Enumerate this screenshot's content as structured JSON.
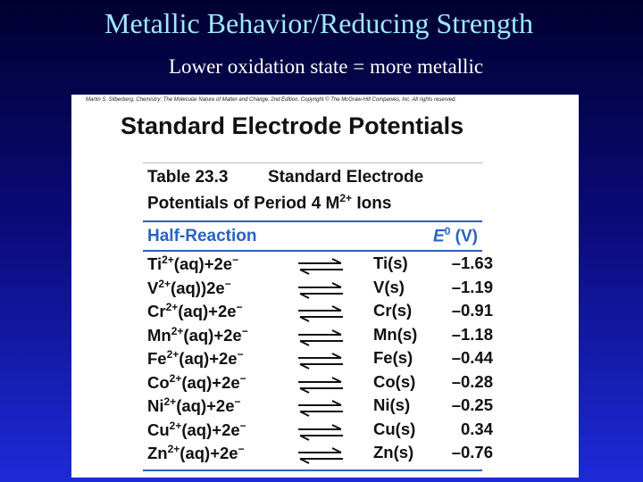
{
  "slide": {
    "title": "Metallic Behavior/Reducing Strength",
    "subtitle": "Lower oxidation state = more metallic"
  },
  "figure": {
    "credit": "Martin S. Silberberg, Chemistry: The Molecular Nature of Matter and Change, 2nd Edition. Copyright © The McGraw-Hill Companies, Inc. All rights reserved.",
    "heading": "Standard Electrode Potentials",
    "caption": {
      "label": "Table 23.3",
      "line1": "Standard Electrode",
      "line2": "Potentials of Period 4 M",
      "line2_sup": "2+",
      "line2_end": " Ions"
    },
    "header": {
      "reaction": "Half-Reaction",
      "e": "E",
      "e_sup": "0",
      "unit": "(V)"
    },
    "rows": [
      {
        "ion": "Ti",
        "charge": "2+",
        "rest": "(aq)+2e",
        "e_sup": "−",
        "metal": "Ti",
        "state": "(s)",
        "value": "–1.63"
      },
      {
        "ion": "V",
        "charge": "2+",
        "rest": "(aq))2e",
        "e_sup": "−",
        "metal": "V",
        "state": "(s)",
        "value": "–1.19"
      },
      {
        "ion": "Cr",
        "charge": "2+",
        "rest": "(aq)+2e",
        "e_sup": "−",
        "metal": "Cr",
        "state": "(s)",
        "value": "–0.91"
      },
      {
        "ion": "Mn",
        "charge": "2+",
        "rest": "(aq)+2e",
        "e_sup": "−",
        "metal": "Mn",
        "state": "(s)",
        "value": "–1.18"
      },
      {
        "ion": "Fe",
        "charge": "2+",
        "rest": "(aq)+2e",
        "e_sup": "−",
        "metal": "Fe",
        "state": "(s)",
        "value": "–0.44"
      },
      {
        "ion": "Co",
        "charge": "2+",
        "rest": "(aq)+2e",
        "e_sup": "−",
        "metal": "Co",
        "state": "(s)",
        "value": "–0.28"
      },
      {
        "ion": "Ni",
        "charge": "2+",
        "rest": "(aq)+2e",
        "e_sup": "−",
        "metal": "Ni",
        "state": "(s)",
        "value": "–0.25"
      },
      {
        "ion": "Cu",
        "charge": "2+",
        "rest": "(aq)+2e",
        "e_sup": "−",
        "metal": "Cu",
        "state": "(s)",
        "value": "0.34"
      },
      {
        "ion": "Zn",
        "charge": "2+",
        "rest": "(aq)+2e",
        "e_sup": "−",
        "metal": "Zn",
        "state": "(s)",
        "value": "–0.76"
      }
    ]
  }
}
